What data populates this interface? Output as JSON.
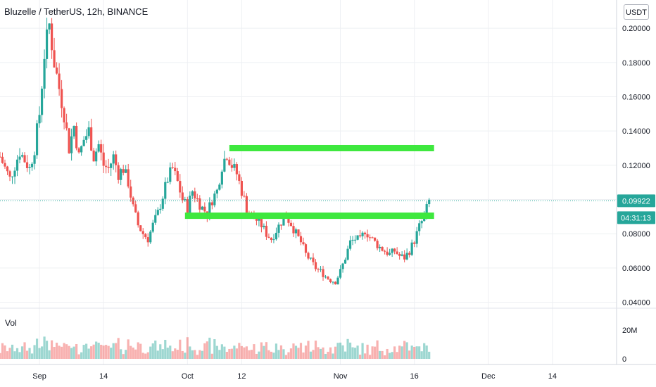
{
  "header": {
    "title": "Bluzelle / TetherUS, 12h, BINANCE",
    "currency": "USDT"
  },
  "volume_label": "Vol",
  "colors": {
    "up": "#26a69a",
    "down": "#ef5350",
    "zone": "#3ee83e",
    "grid": "#eef0f3",
    "badge": "#26a69a"
  },
  "chart_data": {
    "type": "candlestick",
    "title": "Bluzelle / TetherUS, 12h, BINANCE",
    "y_ticks": [
      "0.04000",
      "0.06000",
      "0.08000",
      "0.10000",
      "0.12000",
      "0.14000",
      "0.16000",
      "0.18000",
      "0.20000"
    ],
    "y_tick_values": [
      0.04,
      0.06,
      0.08,
      0.1,
      0.12,
      0.14,
      0.16,
      0.18,
      0.2
    ],
    "ylim": [
      0.0365,
      0.2165
    ],
    "x_ticks": [
      {
        "label": "Sep",
        "day": 0
      },
      {
        "label": "14",
        "day": 13
      },
      {
        "label": "Oct",
        "day": 30
      },
      {
        "label": "12",
        "day": 41
      },
      {
        "label": "Nov",
        "day": 61
      },
      {
        "label": "16",
        "day": 76
      },
      {
        "label": "Dec",
        "day": 91
      },
      {
        "label": "14",
        "day": 104
      }
    ],
    "xlim_days": [
      -8,
      117
    ],
    "last_price": "0.09922",
    "last_price_value": 0.09922,
    "countdown": "04:31:13",
    "volume_ticks": [
      {
        "label": "20M",
        "value": 20
      },
      {
        "label": "0",
        "value": 0
      }
    ],
    "volume_max": 34,
    "zones": [
      {
        "start_day": 38.5,
        "end_day": 80,
        "value": 0.13
      },
      {
        "start_day": 29.5,
        "end_day": 80,
        "value": 0.0905
      }
    ],
    "price_path": [
      [
        -8,
        0.125
      ],
      [
        -6,
        0.112
      ],
      [
        -4,
        0.128
      ],
      [
        -2,
        0.118
      ],
      [
        -1,
        0.13
      ],
      [
        0,
        0.15
      ],
      [
        1,
        0.185
      ],
      [
        2,
        0.202
      ],
      [
        3,
        0.18
      ],
      [
        4,
        0.165
      ],
      [
        5,
        0.15
      ],
      [
        6,
        0.13
      ],
      [
        7,
        0.143
      ],
      [
        8,
        0.125
      ],
      [
        9,
        0.135
      ],
      [
        10,
        0.14
      ],
      [
        11,
        0.125
      ],
      [
        12,
        0.132
      ],
      [
        13,
        0.12
      ],
      [
        14,
        0.118
      ],
      [
        15,
        0.125
      ],
      [
        16,
        0.115
      ],
      [
        17,
        0.118
      ],
      [
        18,
        0.11
      ],
      [
        19,
        0.095
      ],
      [
        20,
        0.085
      ],
      [
        21,
        0.08
      ],
      [
        22,
        0.077
      ],
      [
        23,
        0.085
      ],
      [
        24,
        0.092
      ],
      [
        25,
        0.102
      ],
      [
        26,
        0.112
      ],
      [
        27,
        0.118
      ],
      [
        28,
        0.11
      ],
      [
        29,
        0.1
      ],
      [
        30,
        0.095
      ],
      [
        31,
        0.105
      ],
      [
        32,
        0.1
      ],
      [
        33,
        0.095
      ],
      [
        34,
        0.092
      ],
      [
        35,
        0.1
      ],
      [
        36,
        0.105
      ],
      [
        37,
        0.12
      ],
      [
        38,
        0.127
      ],
      [
        39,
        0.12
      ],
      [
        40,
        0.115
      ],
      [
        41,
        0.105
      ],
      [
        42,
        0.095
      ],
      [
        43,
        0.09
      ],
      [
        44,
        0.088
      ],
      [
        45,
        0.085
      ],
      [
        46,
        0.08
      ],
      [
        47,
        0.077
      ],
      [
        48,
        0.082
      ],
      [
        49,
        0.087
      ],
      [
        50,
        0.09
      ],
      [
        51,
        0.086
      ],
      [
        52,
        0.08
      ],
      [
        53,
        0.075
      ],
      [
        54,
        0.068
      ],
      [
        55,
        0.064
      ],
      [
        56,
        0.06
      ],
      [
        57,
        0.058
      ],
      [
        58,
        0.055
      ],
      [
        59,
        0.053
      ],
      [
        60,
        0.052
      ],
      [
        61,
        0.058
      ],
      [
        62,
        0.066
      ],
      [
        63,
        0.075
      ],
      [
        64,
        0.077
      ],
      [
        65,
        0.076
      ],
      [
        66,
        0.082
      ],
      [
        67,
        0.078
      ],
      [
        68,
        0.075
      ],
      [
        69,
        0.072
      ],
      [
        70,
        0.07
      ],
      [
        71,
        0.068
      ],
      [
        72,
        0.07
      ],
      [
        73,
        0.067
      ],
      [
        74,
        0.066
      ],
      [
        75,
        0.07
      ],
      [
        76,
        0.076
      ],
      [
        77,
        0.084
      ],
      [
        78,
        0.09
      ],
      [
        79,
        0.099
      ]
    ]
  }
}
